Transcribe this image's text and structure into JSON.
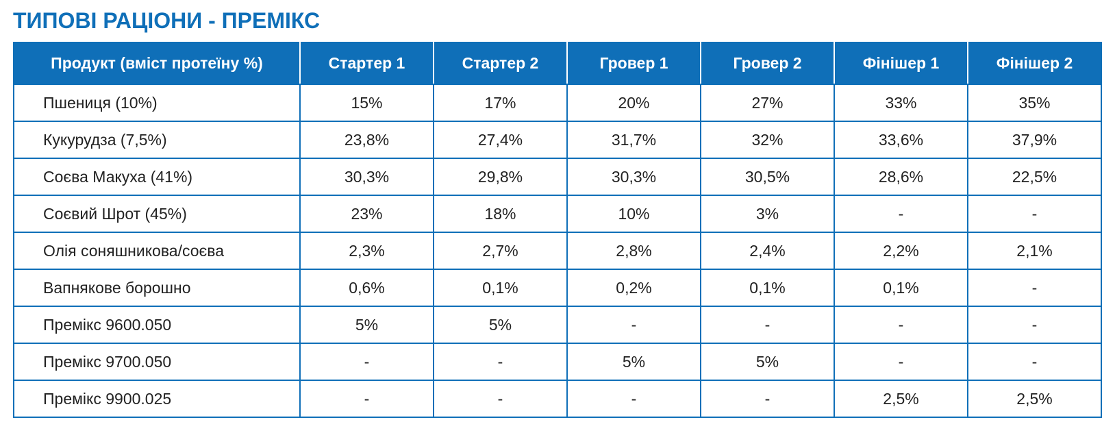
{
  "title": "ТИПОВІ РАЦІОНИ - ПРЕМІКС",
  "colors": {
    "accent": "#0f6fb8",
    "header_text": "#ffffff",
    "body_text": "#222222"
  },
  "table": {
    "headers": [
      "Продукт (вміст протеїну %)",
      "Стартер 1",
      "Стартер 2",
      "Гровер 1",
      "Гровер 2",
      "Фінішер 1",
      "Фінішер 2"
    ],
    "rows": [
      [
        "Пшениця (10%)",
        "15%",
        "17%",
        "20%",
        "27%",
        "33%",
        "35%"
      ],
      [
        "Кукурудза (7,5%)",
        "23,8%",
        "27,4%",
        "31,7%",
        "32%",
        "33,6%",
        "37,9%"
      ],
      [
        "Соєва Макуха (41%)",
        "30,3%",
        "29,8%",
        "30,3%",
        "30,5%",
        "28,6%",
        "22,5%"
      ],
      [
        "Соєвий Шрот (45%)",
        "23%",
        "18%",
        "10%",
        "3%",
        "-",
        "-"
      ],
      [
        "Олія соняшникова/соєва",
        "2,3%",
        "2,7%",
        "2,8%",
        "2,4%",
        "2,2%",
        "2,1%"
      ],
      [
        "Вапнякове борошно",
        "0,6%",
        "0,1%",
        "0,2%",
        "0,1%",
        "0,1%",
        "-"
      ],
      [
        "Премікс 9600.050",
        "5%",
        "5%",
        "-",
        "-",
        "-",
        "-"
      ],
      [
        "Премікс 9700.050",
        "-",
        "-",
        "5%",
        "5%",
        "-",
        "-"
      ],
      [
        "Премікс 9900.025",
        "-",
        "-",
        "-",
        "-",
        "2,5%",
        "2,5%"
      ]
    ]
  }
}
